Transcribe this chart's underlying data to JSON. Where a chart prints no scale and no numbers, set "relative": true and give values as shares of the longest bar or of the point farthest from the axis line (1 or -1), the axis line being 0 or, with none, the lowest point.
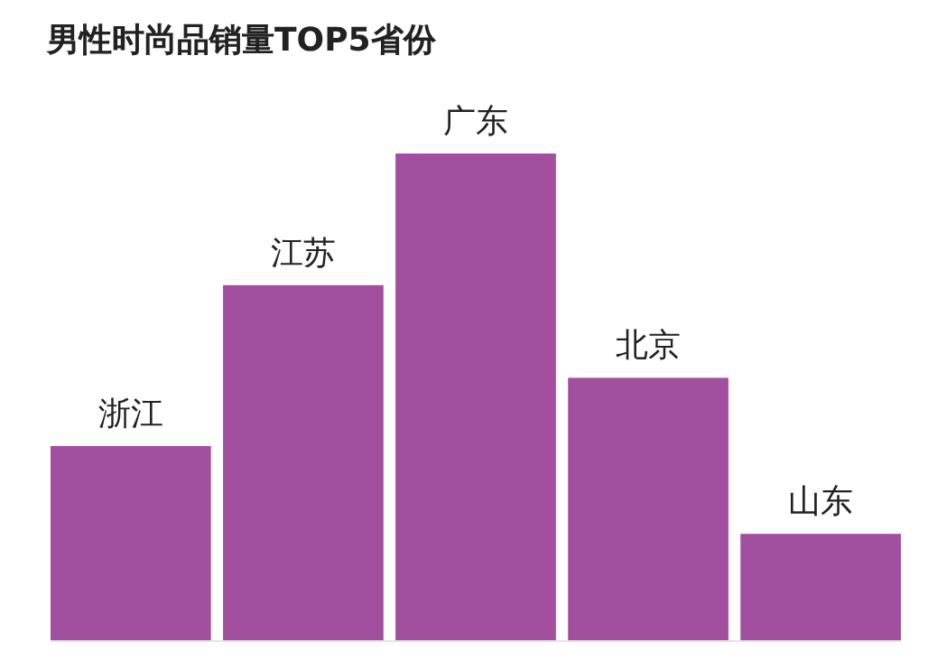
{
  "chart_data": {
    "type": "bar",
    "title": "男性时尚品销量TOP5省份",
    "categories": [
      "浙江",
      "江苏",
      "广东",
      "北京",
      "山东"
    ],
    "values": [
      0.4,
      0.73,
      1,
      0.54,
      0.22
    ],
    "color": "#a24f9f",
    "relative": true
  }
}
